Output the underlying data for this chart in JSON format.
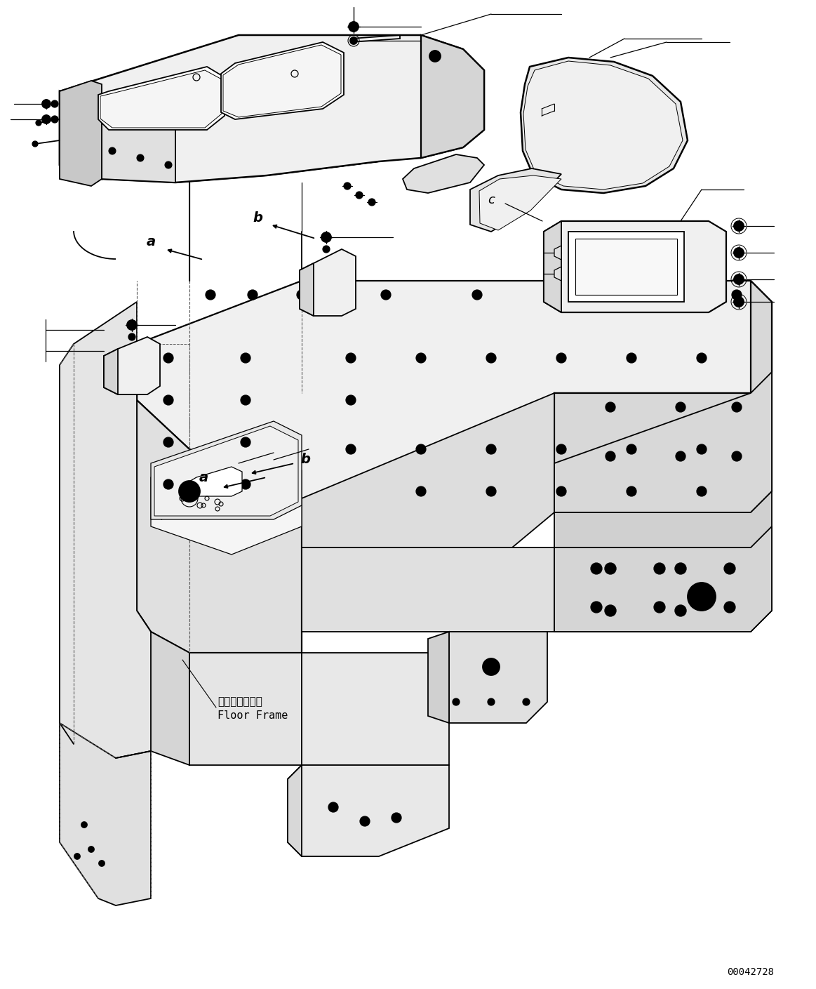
{
  "background_color": "#ffffff",
  "part_number": "00042728",
  "label_floor_frame_jp": "フロアフレーム",
  "label_floor_frame_en": "Floor Frame",
  "line_color": "#000000",
  "line_width": 1.3,
  "dashed_color": "#555555"
}
